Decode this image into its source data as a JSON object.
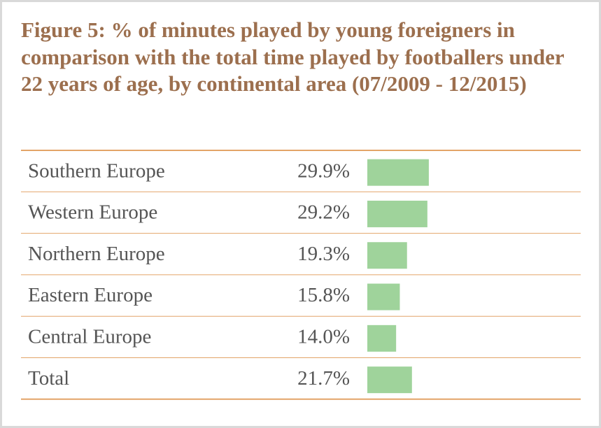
{
  "chart_data": {
    "type": "bar",
    "orientation": "horizontal",
    "title": "Figure 5: % of minutes played by young foreigners in comparison with the total time played by footballers under 22 years of age, by continental area (07/2009 - 12/2015)",
    "categories": [
      "Southern Europe",
      "Western Europe",
      "Northern Europe",
      "Eastern Europe",
      "Central Europe",
      "Total"
    ],
    "values": [
      29.9,
      29.2,
      19.3,
      15.8,
      14.0,
      21.7
    ],
    "value_labels": [
      "29.9%",
      "29.2%",
      "19.3%",
      "15.8%",
      "14.0%",
      "21.7%"
    ],
    "color": "#9fd39b"
  }
}
